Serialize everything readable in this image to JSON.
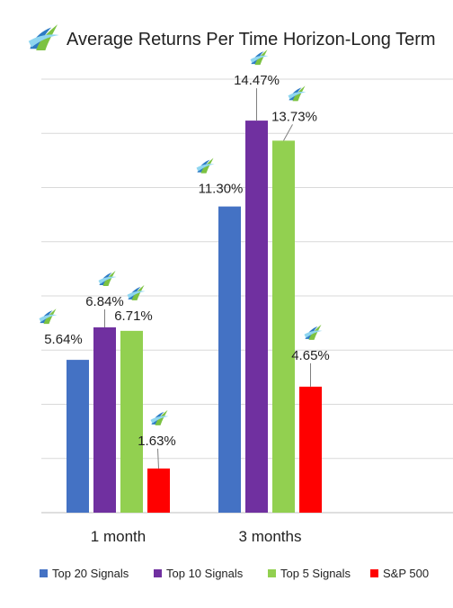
{
  "chart_data": {
    "type": "bar",
    "title": "Average Returns Per Time Horizon-Long Term",
    "categories": [
      "1 month",
      "3 months"
    ],
    "series": [
      {
        "name": "Top 20 Signals",
        "color": "#4472C4",
        "values": [
          5.64,
          11.3
        ],
        "labels": [
          "5.64%",
          "11.30%"
        ]
      },
      {
        "name": "Top 10 Signals",
        "color": "#7030A0",
        "values": [
          6.84,
          14.47
        ],
        "labels": [
          "6.84%",
          "14.47%"
        ]
      },
      {
        "name": "Top 5 Signals",
        "color": "#92D050",
        "values": [
          6.71,
          13.73
        ],
        "labels": [
          "6.71%",
          "13.73%"
        ]
      },
      {
        "name": "S&P 500",
        "color": "#FF0000",
        "values": [
          1.63,
          4.65
        ],
        "labels": [
          "1.63%",
          "4.65%"
        ]
      }
    ],
    "ylim": [
      0,
      16
    ],
    "grid": true,
    "legend": "bottom",
    "xlabel": "",
    "ylabel": "",
    "icon": "leaf-swoosh-logo-icon"
  }
}
